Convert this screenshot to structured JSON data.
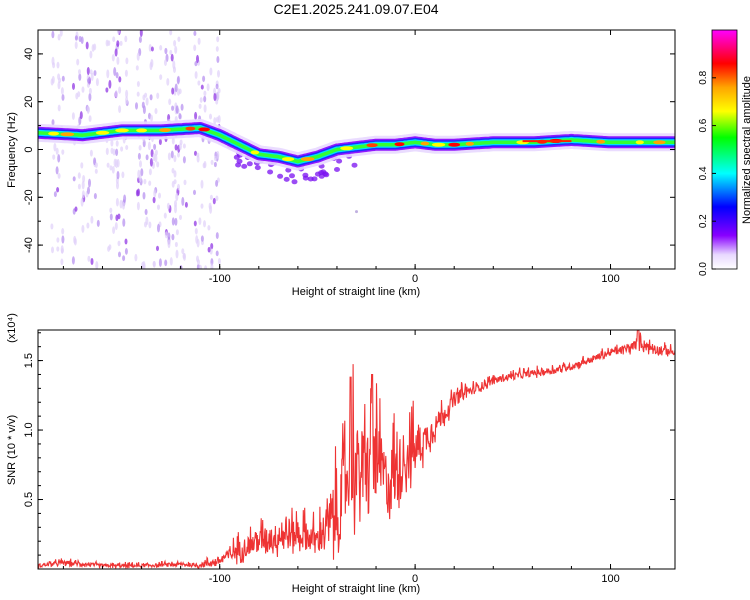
{
  "chart_data": [
    {
      "type": "heatmap",
      "title": "C2E1.2025.241.09.07.E04",
      "xlabel": "Height of straight line (km)",
      "ylabel": "Frequency (Hz)",
      "xlim": [
        -193,
        133
      ],
      "ylim": [
        -50,
        50
      ],
      "x_ticks": [
        -100,
        0,
        100
      ],
      "y_ticks": [
        40,
        20,
        0,
        -20,
        -40
      ],
      "colorbar": {
        "label": "Normalized spectral amplitude",
        "range": [
          0,
          1
        ],
        "ticks": [
          "0.0",
          "0.2",
          "0.4",
          "0.6",
          "0.8"
        ],
        "tick_values": [
          0.0,
          0.2,
          0.4,
          0.6,
          0.8
        ]
      },
      "ridge": {
        "x": [
          -193,
          -170,
          -150,
          -130,
          -110,
          -100,
          -90,
          -80,
          -70,
          -60,
          -50,
          -40,
          -30,
          -20,
          -10,
          0,
          10,
          20,
          40,
          60,
          80,
          100,
          133
        ],
        "y": [
          7,
          6,
          8,
          8,
          9,
          6,
          2,
          -2,
          -3,
          -5,
          -3,
          0,
          1,
          2,
          2,
          3,
          2,
          2,
          3,
          3,
          4,
          3,
          3
        ],
        "peak_amplitude": [
          0.55,
          0.6,
          0.65,
          0.7,
          0.8,
          0.6,
          0.5,
          0.5,
          0.55,
          0.6,
          0.5,
          0.55,
          0.65,
          0.75,
          0.9,
          0.95,
          0.85,
          0.95,
          0.7,
          0.7,
          0.9,
          0.65,
          0.55
        ]
      },
      "colors": {
        "colormap": [
          "#ff00ff",
          "#ff0000",
          "#ffa500",
          "#ffff00",
          "#00ff00",
          "#00ffff",
          "#0000ff",
          "#8800ff",
          "#e8d8ff"
        ]
      }
    },
    {
      "type": "line",
      "title": "",
      "xlabel": "Height of straight line (km)",
      "ylabel": "SNR (10 * v/v)",
      "scale_label": "(x10⁴)",
      "xlim": [
        -193,
        133
      ],
      "ylim": [
        0,
        1.72
      ],
      "x_ticks": [
        -100,
        0,
        100
      ],
      "y_ticks": [
        0.5,
        1.0,
        1.5
      ],
      "y_tick_labels": [
        "0.5",
        "1.0",
        "1.5"
      ],
      "series": [
        {
          "name": "SNR",
          "color": "#ee3333",
          "x": [
            -193,
            -180,
            -160,
            -140,
            -120,
            -110,
            -100,
            -90,
            -80,
            -70,
            -60,
            -50,
            -45,
            -40,
            -35,
            -33,
            -30,
            -25,
            -20,
            -15,
            -10,
            -5,
            0,
            5,
            10,
            15,
            20,
            25,
            30,
            40,
            50,
            60,
            70,
            80,
            90,
            100,
            110,
            115,
            120,
            133
          ],
          "y": [
            0.02,
            0.04,
            0.02,
            0.02,
            0.03,
            0.02,
            0.05,
            0.12,
            0.18,
            0.2,
            0.22,
            0.18,
            0.25,
            0.3,
            0.55,
            0.75,
            0.6,
            0.65,
            0.7,
            0.55,
            0.6,
            0.75,
            0.8,
            0.9,
            1.0,
            1.1,
            1.2,
            1.25,
            1.28,
            1.35,
            1.38,
            1.4,
            1.42,
            1.45,
            1.5,
            1.55,
            1.58,
            1.62,
            1.58,
            1.55
          ],
          "noise": [
            0.015,
            0.02,
            0.015,
            0.015,
            0.015,
            0.02,
            0.04,
            0.08,
            0.1,
            0.12,
            0.12,
            0.12,
            0.2,
            0.3,
            0.4,
            0.5,
            0.4,
            0.35,
            0.35,
            0.3,
            0.3,
            0.25,
            0.2,
            0.15,
            0.1,
            0.08,
            0.06,
            0.05,
            0.04,
            0.03,
            0.03,
            0.03,
            0.03,
            0.03,
            0.03,
            0.03,
            0.04,
            0.05,
            0.04,
            0.03
          ]
        }
      ]
    }
  ]
}
